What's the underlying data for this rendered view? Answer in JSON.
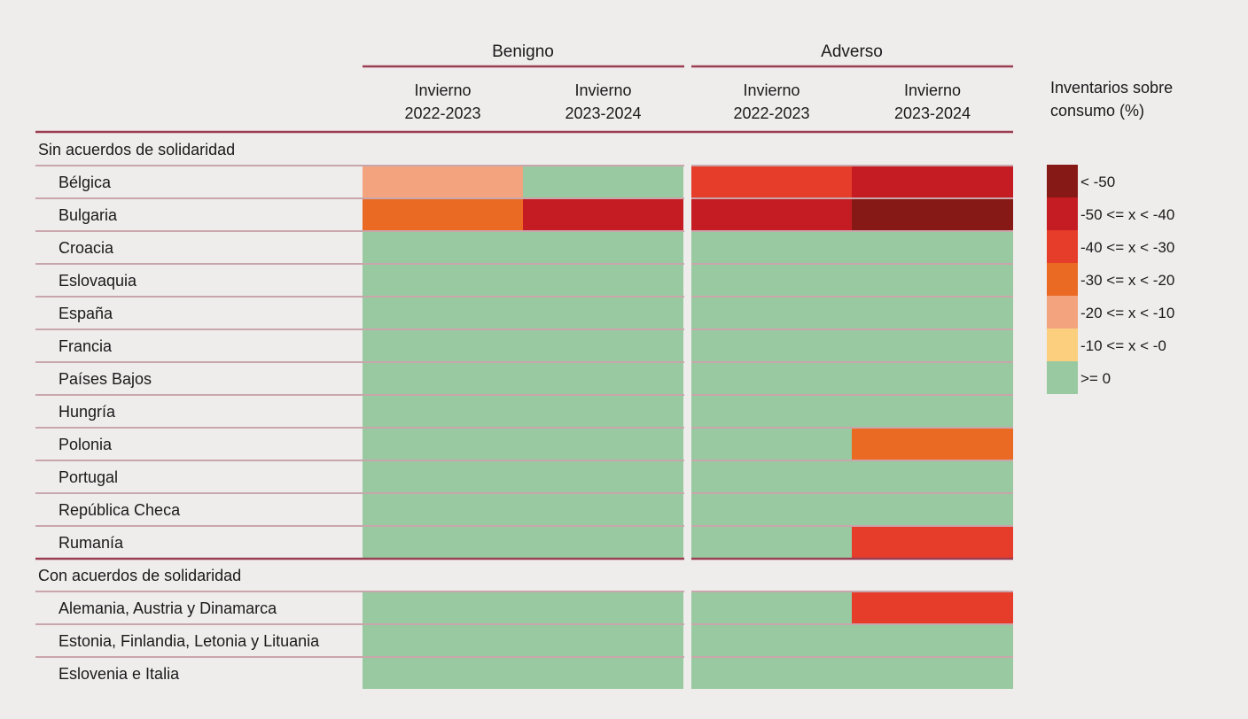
{
  "chart_data": {
    "type": "heatmap",
    "scenarios": [
      {
        "name": "Benigno",
        "columns": [
          "Invierno 2022-2023",
          "Invierno 2023-2024"
        ]
      },
      {
        "name": "Adverso",
        "columns": [
          "Invierno 2022-2023",
          "Invierno 2023-2024"
        ]
      }
    ],
    "column_headers": [
      [
        "Invierno",
        "2022-2023"
      ],
      [
        "Invierno",
        "2023-2024"
      ],
      [
        "Invierno",
        "2022-2023"
      ],
      [
        "Invierno",
        "2023-2024"
      ]
    ],
    "groups": [
      {
        "name": "Sin acuerdos de solidaridad",
        "rows": [
          {
            "label": "Bélgica",
            "classes": [
              4,
              6,
              2,
              1
            ]
          },
          {
            "label": "Bulgaria",
            "classes": [
              3,
              1,
              1,
              0
            ]
          },
          {
            "label": "Croacia",
            "classes": [
              6,
              6,
              6,
              6
            ]
          },
          {
            "label": "Eslovaquia",
            "classes": [
              6,
              6,
              6,
              6
            ]
          },
          {
            "label": "España",
            "classes": [
              6,
              6,
              6,
              6
            ]
          },
          {
            "label": "Francia",
            "classes": [
              6,
              6,
              6,
              6
            ]
          },
          {
            "label": "Países Bajos",
            "classes": [
              6,
              6,
              6,
              6
            ]
          },
          {
            "label": "Hungría",
            "classes": [
              6,
              6,
              6,
              6
            ]
          },
          {
            "label": "Polonia",
            "classes": [
              6,
              6,
              6,
              3
            ]
          },
          {
            "label": "Portugal",
            "classes": [
              6,
              6,
              6,
              6
            ]
          },
          {
            "label": "República Checa",
            "classes": [
              6,
              6,
              6,
              6
            ]
          },
          {
            "label": "Rumanía",
            "classes": [
              6,
              6,
              6,
              2
            ]
          }
        ]
      },
      {
        "name": "Con acuerdos de solidaridad",
        "rows": [
          {
            "label": "Alemania, Austria y Dinamarca",
            "classes": [
              6,
              6,
              6,
              2
            ]
          },
          {
            "label": "Estonia, Finlandia, Letonia y Lituania",
            "classes": [
              6,
              6,
              6,
              6
            ]
          },
          {
            "label": "Eslovenia e Italia",
            "classes": [
              6,
              6,
              6,
              6
            ]
          }
        ]
      }
    ],
    "legend": {
      "title": [
        "Inventarios sobre",
        "consumo (%)"
      ],
      "items": [
        {
          "label": "< -50",
          "color": "#861916"
        },
        {
          "label": "-50 <= x < -40",
          "color": "#c41c22"
        },
        {
          "label": "-40 <= x < -30",
          "color": "#e63c2a"
        },
        {
          "label": "-30 <= x < -20",
          "color": "#ea6a24"
        },
        {
          "label": "-20 <= x < -10",
          "color": "#f3a47f"
        },
        {
          "label": "-10 <= x < -0",
          "color": "#fbcf7e"
        },
        {
          "label": ">= 0",
          "color": "#99c9a0"
        }
      ]
    }
  },
  "colors": {
    "rule": "#9a3f52",
    "row_line": "#c9a6ac",
    "text": "#1a1a1a"
  }
}
